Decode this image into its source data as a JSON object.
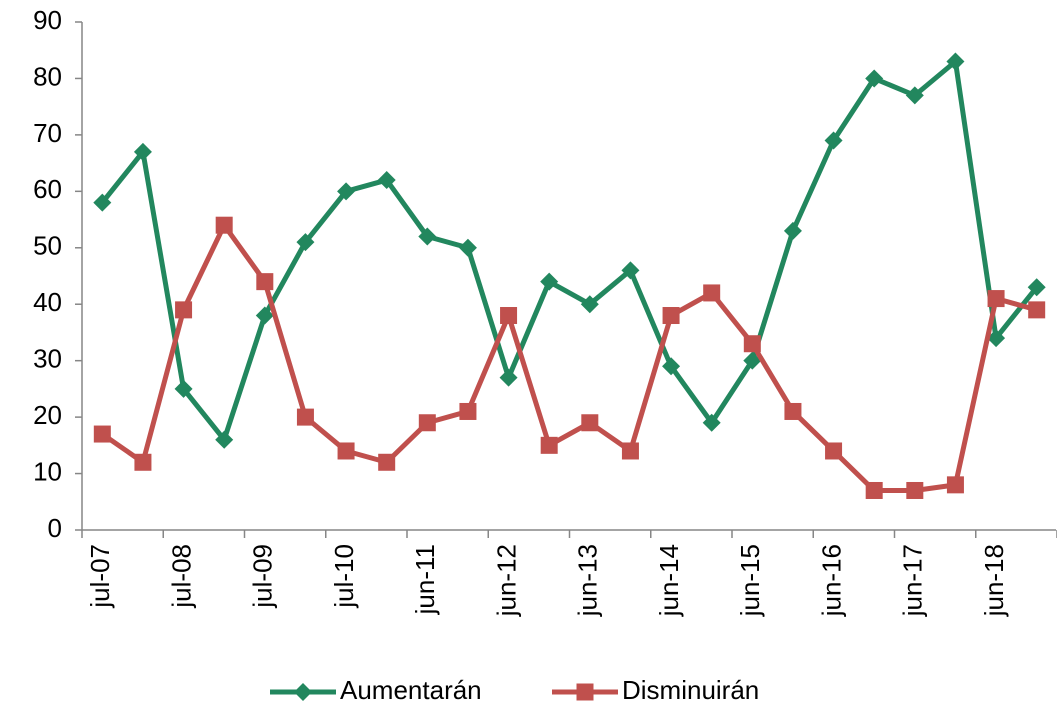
{
  "chart_data": {
    "type": "line",
    "categories": [
      "jul-07",
      null,
      "jul-08",
      null,
      "jul-09",
      null,
      "jul-10",
      null,
      "jun-11",
      null,
      "jun-12",
      null,
      "jun-13",
      null,
      "jun-14",
      null,
      "jun-15",
      null,
      "jun-16",
      null,
      "jun-17",
      null,
      "jun-18",
      null
    ],
    "series": [
      {
        "name": "Aumentarán",
        "color": "#22875e",
        "marker": "diamond",
        "values": [
          58,
          67,
          25,
          16,
          38,
          51,
          60,
          62,
          52,
          50,
          27,
          44,
          40,
          46,
          29,
          19,
          30,
          53,
          69,
          80,
          77,
          83,
          34,
          43
        ]
      },
      {
        "name": "Disminuirán",
        "color": "#c0504d",
        "marker": "square",
        "values": [
          17,
          12,
          39,
          54,
          44,
          20,
          14,
          12,
          19,
          21,
          38,
          15,
          19,
          14,
          38,
          42,
          33,
          21,
          14,
          7,
          7,
          8,
          41,
          39
        ]
      }
    ],
    "ylim": [
      0,
      90
    ],
    "yticks": [
      0,
      10,
      20,
      30,
      40,
      50,
      60,
      70,
      80,
      90
    ],
    "grid": false,
    "legend": "bottom"
  }
}
